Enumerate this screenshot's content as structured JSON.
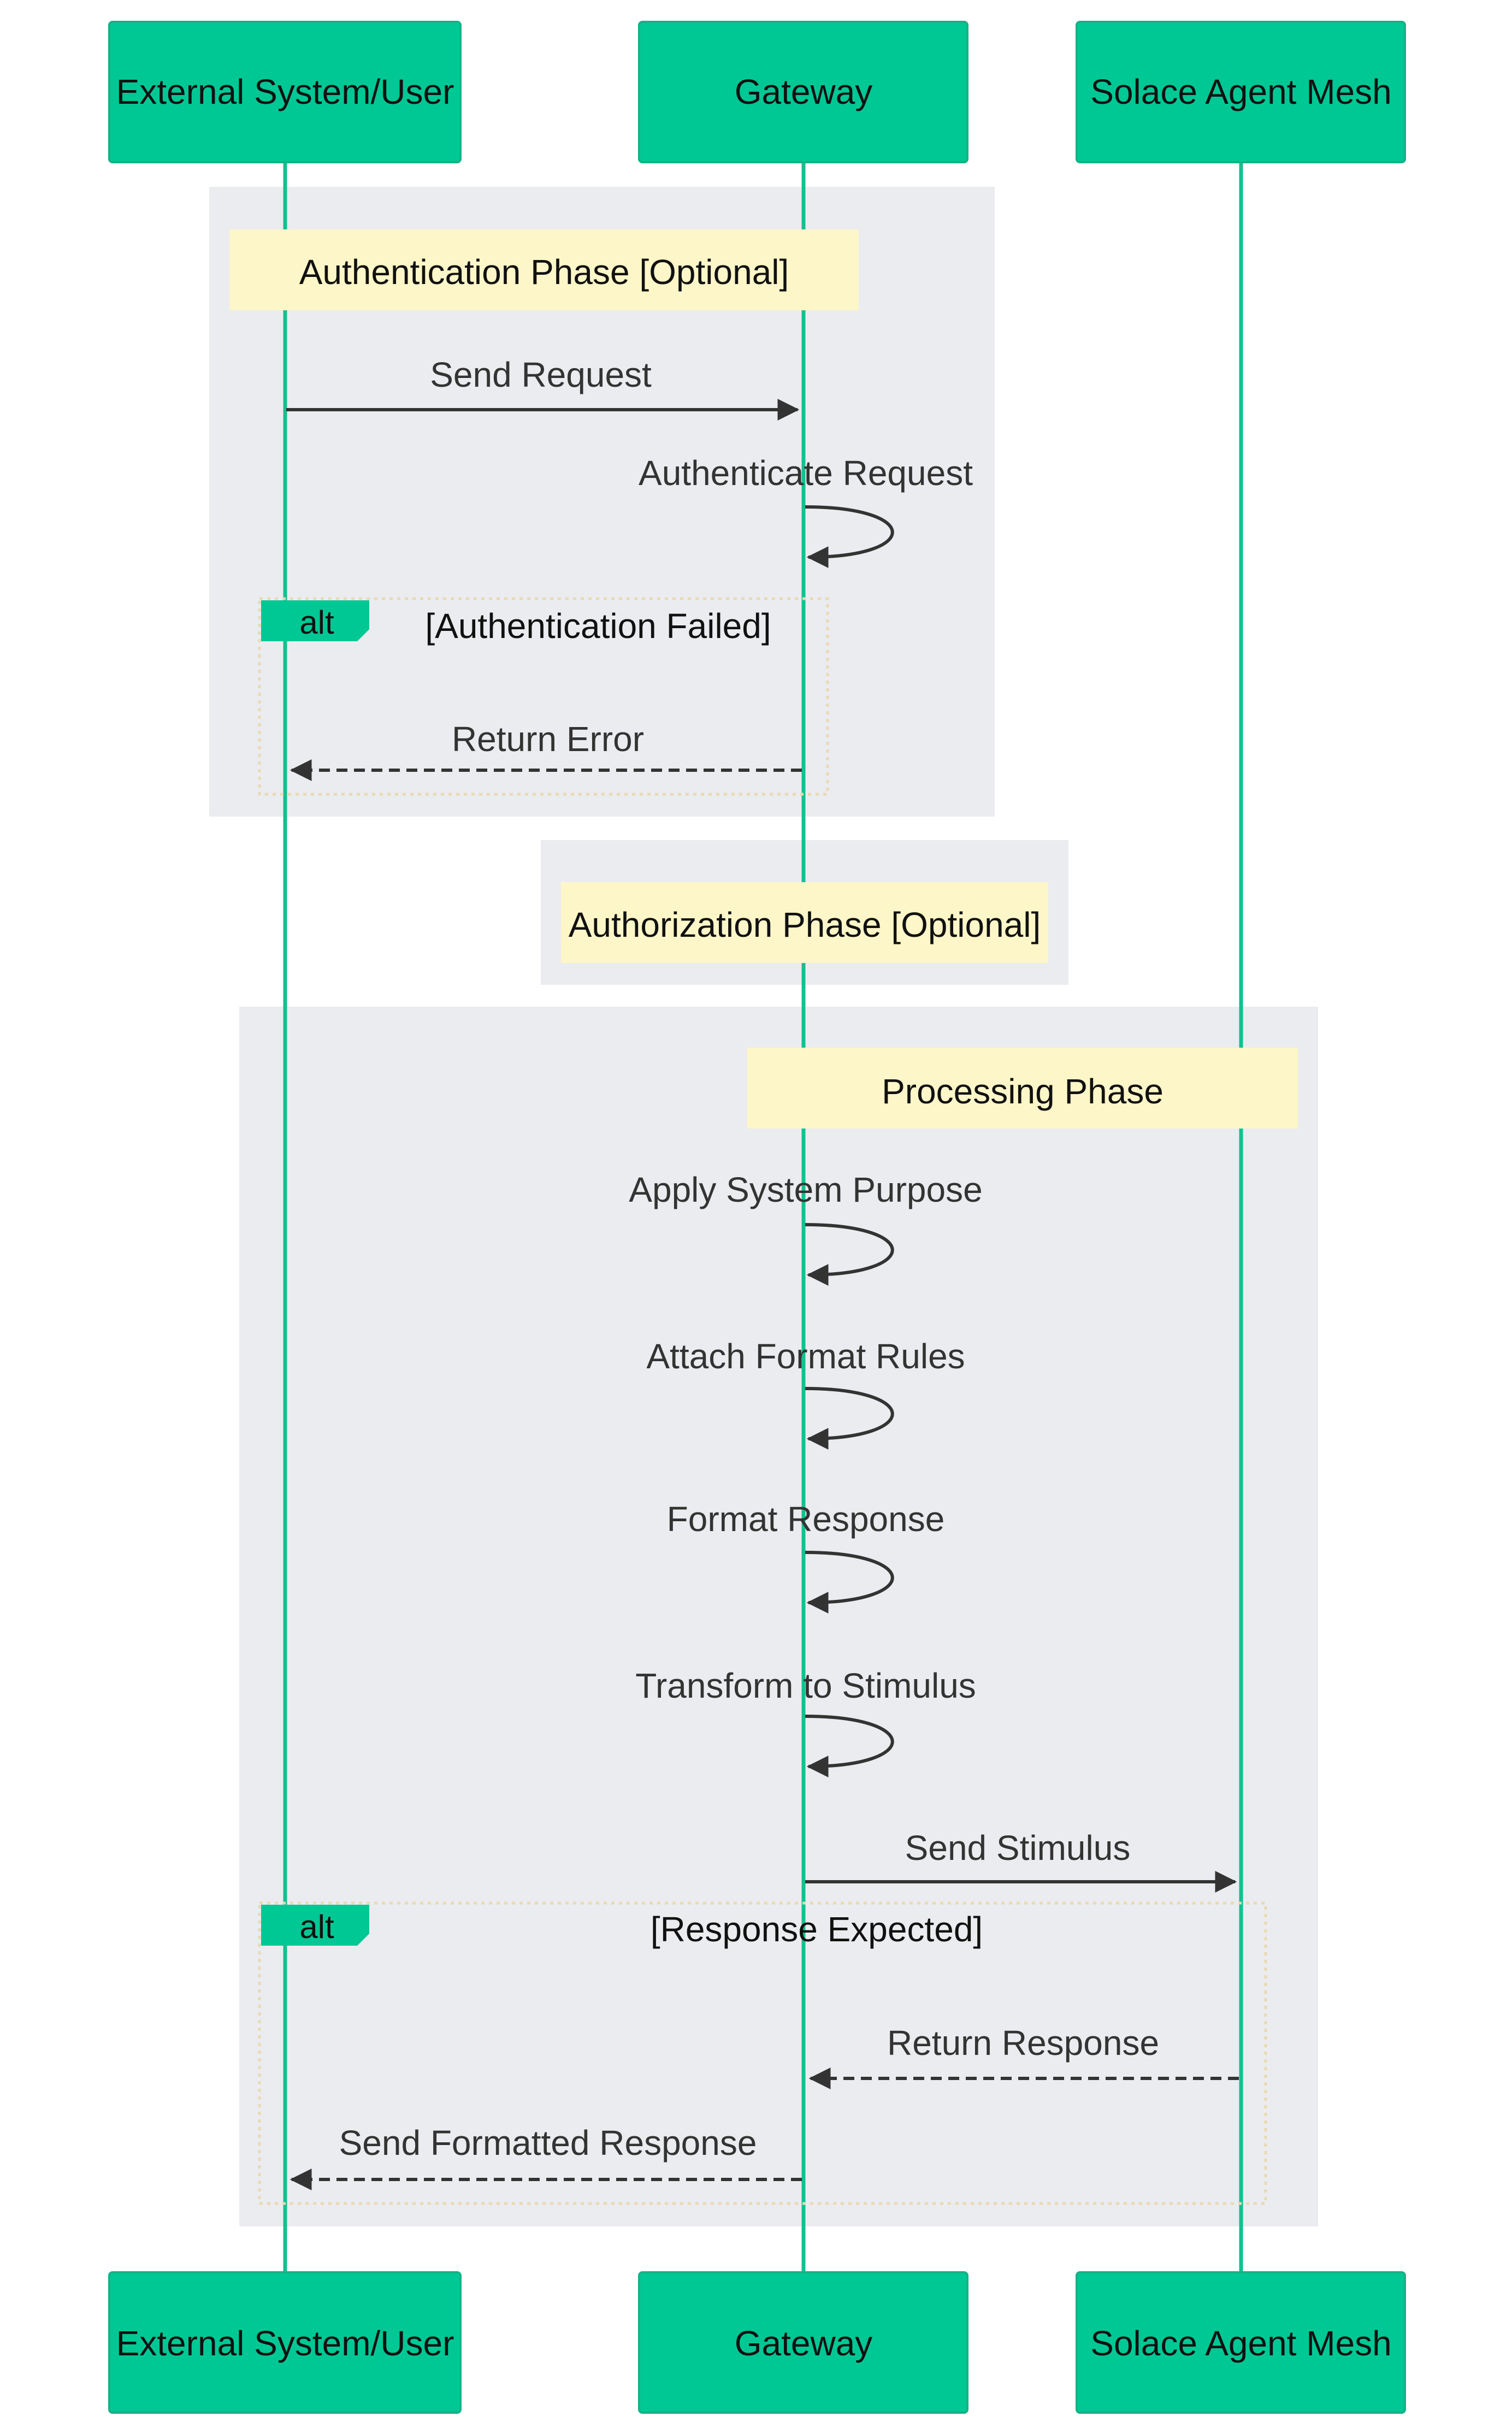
{
  "colors": {
    "participant_fill": "#00c895",
    "participant_border": "#14b386",
    "lifeline": "#14c08f",
    "note_fill": "#fdf6c8",
    "group_fill": "#ebecef",
    "arrow": "#333333",
    "alt_border": "#ead9b3",
    "background": "#ffffff"
  },
  "participants": [
    {
      "id": "external",
      "label": "External System/User"
    },
    {
      "id": "gateway",
      "label": "Gateway"
    },
    {
      "id": "mesh",
      "label": "Solace Agent Mesh"
    }
  ],
  "phases": [
    {
      "label": "Authentication Phase [Optional]"
    },
    {
      "label": "Authorization Phase [Optional]"
    },
    {
      "label": "Processing Phase"
    }
  ],
  "messages": [
    {
      "label": "Send Request",
      "from": "external",
      "to": "gateway",
      "style": "solid"
    },
    {
      "label": "Authenticate Request",
      "from": "gateway",
      "to": "gateway",
      "style": "self"
    },
    {
      "label": "Return Error",
      "from": "gateway",
      "to": "external",
      "style": "dashed"
    },
    {
      "label": "Apply System Purpose",
      "from": "gateway",
      "to": "gateway",
      "style": "self"
    },
    {
      "label": "Attach Format Rules",
      "from": "gateway",
      "to": "gateway",
      "style": "self"
    },
    {
      "label": "Format Response",
      "from": "gateway",
      "to": "gateway",
      "style": "self"
    },
    {
      "label": "Transform to Stimulus",
      "from": "gateway",
      "to": "gateway",
      "style": "self"
    },
    {
      "label": "Send Stimulus",
      "from": "gateway",
      "to": "mesh",
      "style": "solid"
    },
    {
      "label": "Return Response",
      "from": "mesh",
      "to": "gateway",
      "style": "dashed"
    },
    {
      "label": "Send Formatted Response",
      "from": "gateway",
      "to": "external",
      "style": "dashed"
    }
  ],
  "alt_blocks": [
    {
      "keyword": "alt",
      "condition": "[Authentication Failed]"
    },
    {
      "keyword": "alt",
      "condition": "[Response Expected]"
    }
  ]
}
